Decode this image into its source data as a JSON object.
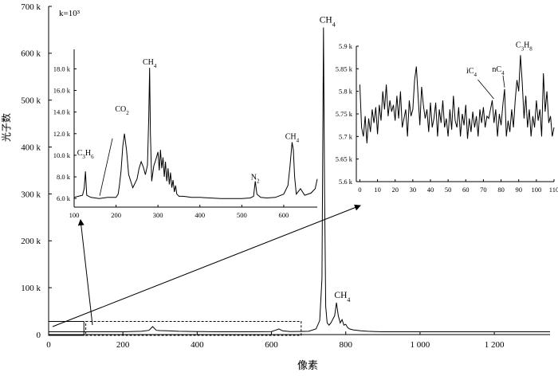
{
  "chart_data": [
    {
      "id": "main",
      "type": "line",
      "xlabel": "像素",
      "ylabel": "光子数",
      "xlim": [
        0,
        1350
      ],
      "ylim": [
        0,
        700000
      ],
      "xticks": [
        0,
        200,
        400,
        600,
        800,
        1000,
        1200
      ],
      "xtick_labels": [
        "0",
        "200",
        "400",
        "600",
        "800",
        "1 000",
        "1 200"
      ],
      "yticks": [
        0,
        100000,
        200000,
        300000,
        400000,
        500000,
        600000,
        700000
      ],
      "ytick_labels": [
        "0",
        "100 k",
        "200 k",
        "300 k",
        "400 k",
        "500 k",
        "600 k",
        "700 k"
      ],
      "series": [
        {
          "x": [
            0,
            50,
            100,
            150,
            200,
            250,
            270,
            280,
            290,
            300,
            320,
            350,
            400,
            450,
            500,
            550,
            600,
            610,
            620,
            630,
            650,
            700,
            720,
            730,
            736,
            740,
            743,
            746,
            750,
            755,
            760,
            770,
            775,
            780,
            785,
            790,
            795,
            800,
            805,
            810,
            820,
            840,
            860,
            880,
            900,
            950,
            1000,
            1100,
            1200,
            1300,
            1350
          ],
          "y": [
            6000,
            6000,
            6000,
            6000,
            6000,
            7000,
            9000,
            17000,
            9000,
            8500,
            8000,
            7000,
            6500,
            6000,
            6000,
            6000,
            6500,
            9000,
            12000,
            8000,
            6500,
            7000,
            12000,
            30000,
            120000,
            655000,
            300000,
            60000,
            25000,
            20000,
            25000,
            40000,
            68000,
            40000,
            25000,
            32000,
            20000,
            22000,
            15000,
            12000,
            10000,
            8000,
            7000,
            6500,
            6000,
            6000,
            6000,
            6000,
            6000,
            6000,
            6000
          ]
        }
      ],
      "annotations": [
        {
          "label": "CH4",
          "x": 740,
          "y": 655000
        },
        {
          "label": "CH4",
          "x": 780,
          "y": 68000
        }
      ],
      "region_boxes": [
        {
          "x": [
            0,
            95
          ],
          "y": [
            0,
            28000
          ]
        },
        {
          "x": [
            100,
            680
          ],
          "y": [
            0,
            28000
          ]
        }
      ]
    },
    {
      "id": "inset-left",
      "type": "line",
      "xlim": [
        100,
        680
      ],
      "ylim": [
        5200,
        19800
      ],
      "xticks": [
        100,
        200,
        300,
        400,
        500,
        600
      ],
      "xtick_labels": [
        "100",
        "200",
        "300",
        "400",
        "500",
        "600"
      ],
      "yticks": [
        6000,
        8000,
        10000,
        12000,
        14000,
        16000,
        18000
      ],
      "ytick_labels": [
        "6.0 k",
        "8.0 k",
        "10.0 k",
        "12.0 k",
        "14.0 k",
        "16.0 k",
        "18.0 k"
      ],
      "note_text": "k=10³",
      "series": [
        {
          "x": [
            100,
            110,
            120,
            124,
            127,
            130,
            140,
            160,
            180,
            200,
            205,
            208,
            212,
            216,
            220,
            225,
            230,
            240,
            250,
            255,
            260,
            265,
            270,
            275,
            278,
            280,
            282,
            285,
            290,
            295,
            300,
            303,
            306,
            309,
            312,
            315,
            318,
            321,
            324,
            327,
            330,
            333,
            336,
            339,
            342,
            345,
            350,
            360,
            380,
            400,
            450,
            500,
            520,
            528,
            532,
            536,
            545,
            560,
            580,
            600,
            610,
            615,
            620,
            623,
            626,
            630,
            640,
            650,
            665,
            675,
            680
          ],
          "y": [
            6100,
            6200,
            6300,
            6900,
            8500,
            6300,
            6100,
            6000,
            6100,
            6100,
            6400,
            7200,
            8600,
            10800,
            12000,
            10500,
            8200,
            7000,
            7800,
            8800,
            9400,
            8900,
            8200,
            9100,
            13500,
            18100,
            12000,
            7600,
            9000,
            9600,
            10300,
            8600,
            10500,
            8800,
            9800,
            8000,
            9400,
            7600,
            8800,
            7300,
            8400,
            7000,
            7700,
            6600,
            7200,
            6400,
            6200,
            6200,
            6100,
            6100,
            6000,
            6000,
            6050,
            6200,
            7600,
            6400,
            6100,
            6050,
            6100,
            6400,
            7200,
            9000,
            11200,
            10500,
            8000,
            6400,
            6900,
            6300,
            6500,
            6900,
            7800
          ]
        }
      ],
      "annotations": [
        {
          "label": "C3H6",
          "x": 127,
          "y": 8500
        },
        {
          "label": "CO2",
          "x": 218,
          "y": 12000
        },
        {
          "label": "CH4",
          "x": 280,
          "y": 18100
        },
        {
          "label": "N2",
          "x": 532,
          "y": 7600
        },
        {
          "label": "CH4",
          "x": 620,
          "y": 11200
        }
      ]
    },
    {
      "id": "inset-right",
      "type": "line",
      "xlim": [
        -2,
        110
      ],
      "ylim": [
        5600,
        5900
      ],
      "xticks": [
        0,
        10,
        20,
        30,
        40,
        50,
        60,
        70,
        80,
        90,
        100,
        110
      ],
      "xtick_labels": [
        "0",
        "10",
        "20",
        "30",
        "40",
        "50",
        "60",
        "70",
        "80",
        "90",
        "100",
        "110"
      ],
      "yticks": [
        5600,
        5650,
        5700,
        5750,
        5800,
        5850,
        5900
      ],
      "ytick_labels": [
        "5.6 k",
        "5.65 k",
        "5.7 k",
        "5.75 k",
        "5.8 k",
        "5.85 k",
        "5.9 k"
      ],
      "series": [
        {
          "x": [
            0,
            1,
            2,
            3,
            4,
            5,
            6,
            7,
            8,
            9,
            10,
            11,
            12,
            13,
            14,
            15,
            16,
            17,
            18,
            19,
            20,
            21,
            22,
            23,
            24,
            25,
            26,
            27,
            28,
            29,
            30,
            31,
            32,
            33,
            34,
            35,
            36,
            37,
            38,
            39,
            40,
            41,
            42,
            43,
            44,
            45,
            46,
            47,
            48,
            49,
            50,
            51,
            52,
            53,
            54,
            55,
            56,
            57,
            58,
            59,
            60,
            61,
            62,
            63,
            64,
            65,
            66,
            67,
            68,
            69,
            70,
            71,
            72,
            73,
            74,
            75,
            76,
            77,
            78,
            79,
            80,
            81,
            82,
            83,
            84,
            85,
            86,
            87,
            88,
            89,
            90,
            91,
            92,
            93,
            94,
            95,
            96,
            97,
            98,
            99,
            100,
            101,
            102,
            103,
            104,
            105,
            106,
            107,
            108,
            109,
            110
          ],
          "y": [
            5815,
            5720,
            5700,
            5745,
            5685,
            5740,
            5710,
            5760,
            5730,
            5765,
            5705,
            5770,
            5735,
            5800,
            5760,
            5815,
            5745,
            5780,
            5755,
            5770,
            5735,
            5790,
            5740,
            5800,
            5720,
            5740,
            5760,
            5700,
            5780,
            5745,
            5760,
            5825,
            5855,
            5790,
            5725,
            5810,
            5770,
            5740,
            5760,
            5710,
            5775,
            5720,
            5740,
            5775,
            5700,
            5760,
            5730,
            5780,
            5720,
            5740,
            5700,
            5760,
            5715,
            5790,
            5735,
            5720,
            5765,
            5700,
            5750,
            5725,
            5770,
            5695,
            5740,
            5710,
            5755,
            5720,
            5745,
            5700,
            5760,
            5730,
            5765,
            5720,
            5745,
            5740,
            5760,
            5780,
            5730,
            5760,
            5700,
            5750,
            5725,
            5770,
            5805,
            5700,
            5735,
            5710,
            5760,
            5720,
            5780,
            5825,
            5800,
            5880,
            5820,
            5740,
            5790,
            5720,
            5760,
            5700,
            5745,
            5720,
            5780,
            5735,
            5760,
            5700,
            5840,
            5755,
            5800,
            5730,
            5745,
            5700,
            5720
          ]
        }
      ],
      "annotations": [
        {
          "label": "iC4",
          "x": 75,
          "y": 5780
        },
        {
          "label": "nC4",
          "x": 82,
          "y": 5805
        },
        {
          "label": "C3H8",
          "x": 93,
          "y": 5880
        }
      ]
    }
  ]
}
